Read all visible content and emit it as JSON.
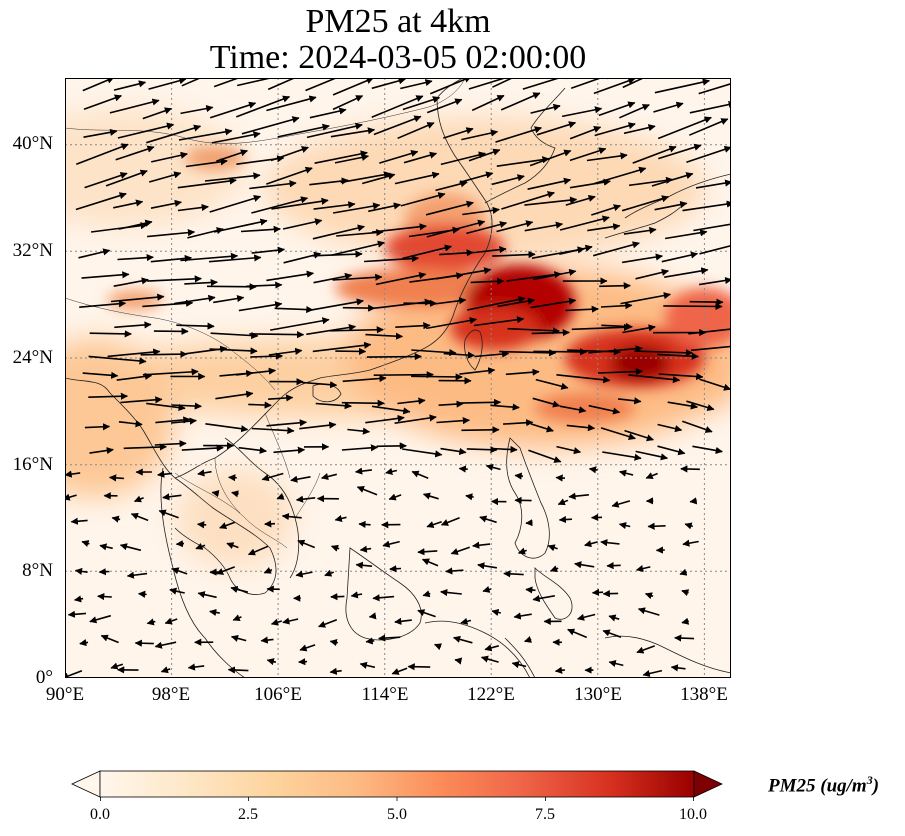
{
  "figure": {
    "title_line1": "PM25 at 4km",
    "title_line2": "Time: 2024-03-05 02:00:00"
  },
  "map": {
    "variable": "PM25",
    "level": "4km",
    "extent": {
      "lon": [
        90,
        140
      ],
      "lat": [
        0,
        45
      ]
    },
    "lat_ticks": [
      "40°N",
      "32°N",
      "24°N",
      "16°N",
      "8°N",
      "0°"
    ],
    "lon_ticks": [
      "90°E",
      "98°E",
      "106°E",
      "114°E",
      "122°E",
      "130°E",
      "138°E"
    ],
    "gridlines": "dotted",
    "coastlines": true,
    "wind_vectors": true,
    "colormap": "OrRd",
    "colors": {
      "low": "#fff7ec",
      "mid": "#fc8d59",
      "high": "#7f0000"
    }
  },
  "colorbar": {
    "ticks": [
      "0.0",
      "2.5",
      "5.0",
      "7.5",
      "10.0"
    ],
    "min": 0,
    "max": 10,
    "label": "PM25 (ug/m",
    "label_sup": "3",
    "label_end": ")"
  }
}
